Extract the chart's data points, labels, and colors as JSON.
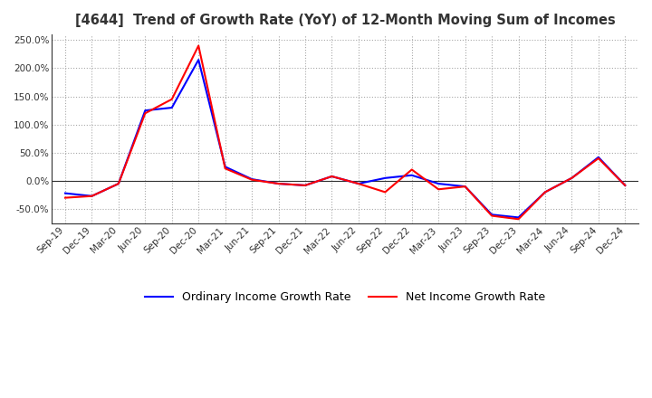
{
  "title": "[4644]  Trend of Growth Rate (YoY) of 12-Month Moving Sum of Incomes",
  "x_labels": [
    "Sep-19",
    "Dec-19",
    "Mar-20",
    "Jun-20",
    "Sep-20",
    "Dec-20",
    "Mar-21",
    "Jun-21",
    "Sep-21",
    "Dec-21",
    "Mar-22",
    "Jun-22",
    "Sep-22",
    "Dec-22",
    "Mar-23",
    "Jun-23",
    "Sep-23",
    "Dec-23",
    "Mar-24",
    "Jun-24",
    "Sep-24",
    "Dec-24"
  ],
  "ordinary_income": [
    -22,
    -27,
    -5,
    125,
    130,
    215,
    25,
    3,
    -5,
    -8,
    8,
    -5,
    5,
    10,
    -5,
    -10,
    -60,
    -65,
    -20,
    5,
    42,
    -8
  ],
  "net_income": [
    -30,
    -27,
    -5,
    120,
    145,
    240,
    22,
    2,
    -5,
    -8,
    8,
    -5,
    -20,
    20,
    -15,
    -10,
    -62,
    -68,
    -20,
    5,
    40,
    -8
  ],
  "ordinary_color": "#0000ff",
  "net_color": "#ff0000",
  "ylim": [
    -75,
    260
  ],
  "yticks": [
    -50,
    0,
    50,
    100,
    150,
    200,
    250
  ],
  "background_color": "#ffffff",
  "vgrid_color": "#aaaaaa",
  "hgrid_color": "#aaaaaa",
  "legend_labels": [
    "Ordinary Income Growth Rate",
    "Net Income Growth Rate"
  ]
}
